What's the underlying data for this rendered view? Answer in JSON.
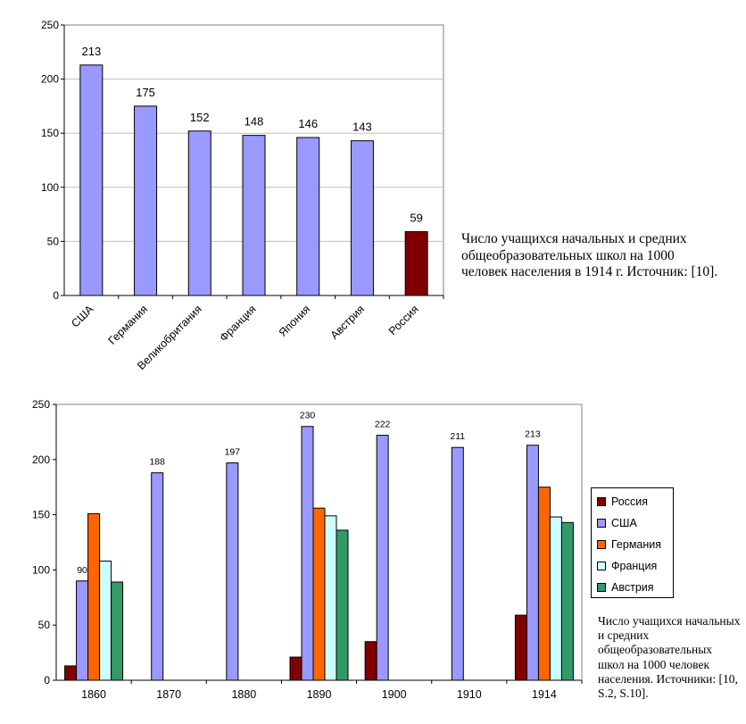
{
  "chart_data": [
    {
      "type": "bar",
      "categories": [
        "США",
        "Германия",
        "Великобритания",
        "Франция",
        "Япония",
        "Австрия",
        "Россия"
      ],
      "values": [
        213,
        175,
        152,
        148,
        146,
        143,
        59
      ],
      "colors": [
        "#9999ff",
        "#9999ff",
        "#9999ff",
        "#9999ff",
        "#9999ff",
        "#9999ff",
        "#800000"
      ],
      "ylim": [
        0,
        250
      ],
      "yticks": [
        0,
        50,
        100,
        150,
        200,
        250
      ],
      "grid": true,
      "data_labels": [
        "213",
        "175",
        "152",
        "148",
        "146",
        "143",
        "59"
      ],
      "caption": "Число учащихся начальных и средних общеобразовательных школ на 1000 человек населения в 1914 г. Источник: [10]."
    },
    {
      "type": "bar",
      "categories": [
        "1860",
        "1870",
        "1880",
        "1890",
        "1900",
        "1910",
        "1914"
      ],
      "series": [
        {
          "name": "Россия",
          "color": "#800000",
          "values": [
            13,
            null,
            null,
            21,
            35,
            null,
            59
          ]
        },
        {
          "name": "США",
          "color": "#9999ff",
          "values": [
            90,
            188,
            197,
            230,
            222,
            211,
            213
          ]
        },
        {
          "name": "Германия",
          "color": "#ff6600",
          "values": [
            151,
            null,
            null,
            156,
            null,
            null,
            175
          ]
        },
        {
          "name": "Франция",
          "color": "#ccffff",
          "values": [
            108,
            null,
            null,
            149,
            null,
            null,
            148
          ]
        },
        {
          "name": "Австрия",
          "color": "#339966",
          "values": [
            89,
            null,
            null,
            136,
            null,
            null,
            143
          ]
        }
      ],
      "data_labels": {
        "series": "США",
        "values": [
          "90",
          "188",
          "197",
          "230",
          "222",
          "211",
          "213"
        ]
      },
      "ylim": [
        0,
        250
      ],
      "yticks": [
        0,
        50,
        100,
        150,
        200,
        250
      ],
      "grid": false,
      "legend_position": "right",
      "caption": "Число учащихся начальных и средних общеобразовательных школ на 1000 человек населения. Источники: [10, S.2, S.10]."
    }
  ]
}
